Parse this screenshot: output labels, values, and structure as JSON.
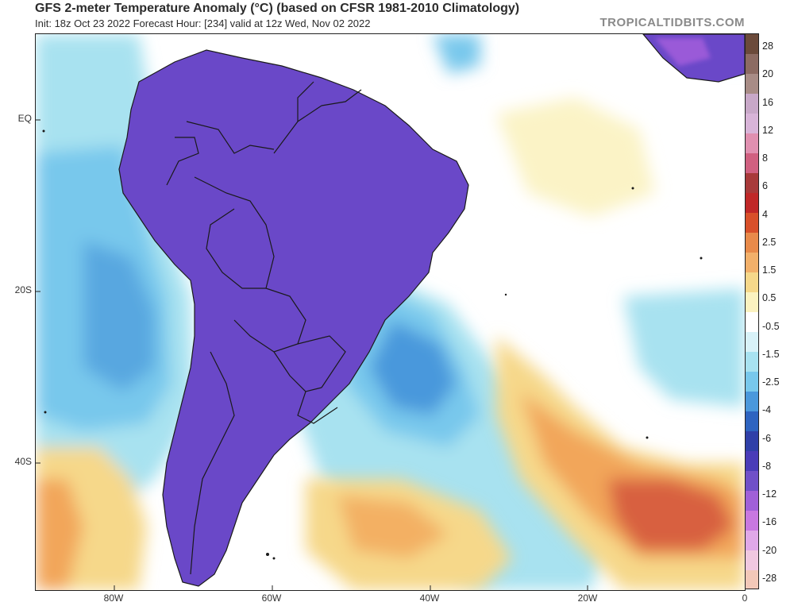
{
  "header": {
    "title": "GFS 2-meter Temperature Anomaly (°C) (based on CFSR 1981-2010 Climatology)",
    "subtitle": "Init: 18z Oct 23 2022   Forecast Hour: [234]   valid at 12z Wed, Nov 02 2022",
    "brand": "TROPICALTIDBITS.COM"
  },
  "axes": {
    "lat_labels": [
      "EQ",
      "20S",
      "40S"
    ],
    "lon_labels": [
      "80W",
      "60W",
      "40W",
      "20W",
      "0"
    ]
  },
  "legend": {
    "labels": [
      "28",
      "20",
      "16",
      "12",
      "8",
      "6",
      "4",
      "2.5",
      "1.5",
      "0.5",
      "-0.5",
      "-1.5",
      "-2.5",
      "-4",
      "-6",
      "-8",
      "-12",
      "-16",
      "-20",
      "-28"
    ],
    "colors": [
      "#6b4a3a",
      "#8c6b62",
      "#a88c86",
      "#c8a8c8",
      "#d8b4d8",
      "#e090b0",
      "#d06080",
      "#a83a3a",
      "#c02828",
      "#d8502a",
      "#e88a4a",
      "#f2b06a",
      "#f6d88a",
      "#fbf2c0",
      "#ffffff",
      "#d8f2f8",
      "#a8e2f0",
      "#78c8ec",
      "#4a98dc",
      "#2e64c0",
      "#3040a8",
      "#4a3cb8",
      "#7050c8",
      "#a060d8",
      "#c878e0",
      "#e0a8e8",
      "#f0c8e0",
      "#f2c8b8"
    ]
  },
  "map": {
    "colors": {
      "ocean_white": "#ffffff",
      "cyan": "#a8e2f0",
      "light_blue": "#78c8ec",
      "mid_blue": "#4a98dc",
      "deep_blue": "#2e64c0",
      "indigo": "#3a3ab0",
      "purple": "#6a48c8",
      "violet": "#9a5ad8",
      "warm_yellow": "#f6d88a",
      "orange": "#f2a65a",
      "red_orange": "#d86040",
      "dark_red": "#a83030",
      "pink": "#e8a0c0",
      "border": "#1a1a1a"
    }
  }
}
